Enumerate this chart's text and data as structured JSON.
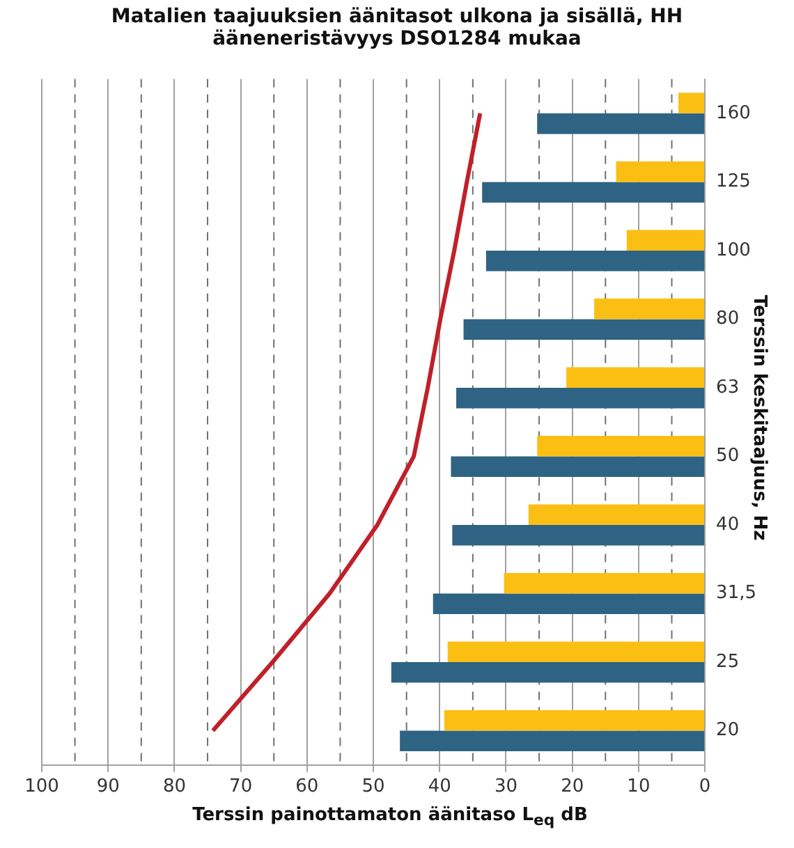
{
  "chart_data": {
    "type": "bar",
    "orientation": "horizontal",
    "title": "Matalien taajuuksien äänitasot ulkona ja sisällä, HH\nääneneristävyys DSO1284 mukaa",
    "xlabel": "Terssin painottamaton äänitaso L$_{eq}$ dB",
    "ylabel": "Terssin keskitaajuus, Hz",
    "categories": [
      "160",
      "125",
      "100",
      "80",
      "63",
      "50",
      "40",
      "31,5",
      "25",
      "20"
    ],
    "series": [
      {
        "color": "#fbbf14",
        "values": [
          4.0,
          13.4,
          11.8,
          16.7,
          20.9,
          25.3,
          26.6,
          30.3,
          38.8,
          39.3
        ]
      },
      {
        "color": "#2e6384",
        "values": [
          25.3,
          33.6,
          33.0,
          36.4,
          37.5,
          38.3,
          38.1,
          41.0,
          47.3,
          46.0
        ]
      },
      {
        "type": "line",
        "color": "#c0202a",
        "values": [
          33.9,
          35.9,
          37.8,
          39.9,
          41.8,
          43.9,
          49.4,
          56.6,
          65.2,
          74.2
        ]
      }
    ],
    "xlim": [
      100,
      0
    ],
    "xticks": [
      0,
      {
        "value": 5,
        "label": null
      },
      10,
      {
        "value": 15,
        "label": null
      },
      20,
      {
        "value": 25,
        "label": null
      },
      30,
      {
        "value": 35,
        "label": null
      },
      40,
      {
        "value": 45,
        "label": null
      },
      50,
      {
        "value": 55,
        "label": null
      },
      60,
      {
        "value": 65,
        "label": null
      },
      70,
      {
        "value": 75,
        "label": null
      },
      80,
      {
        "value": 85,
        "label": null
      },
      90,
      {
        "value": 95,
        "label": null
      },
      100
    ],
    "grid": "x",
    "legend": false,
    "marker": "none",
    "line_style": "solid"
  }
}
